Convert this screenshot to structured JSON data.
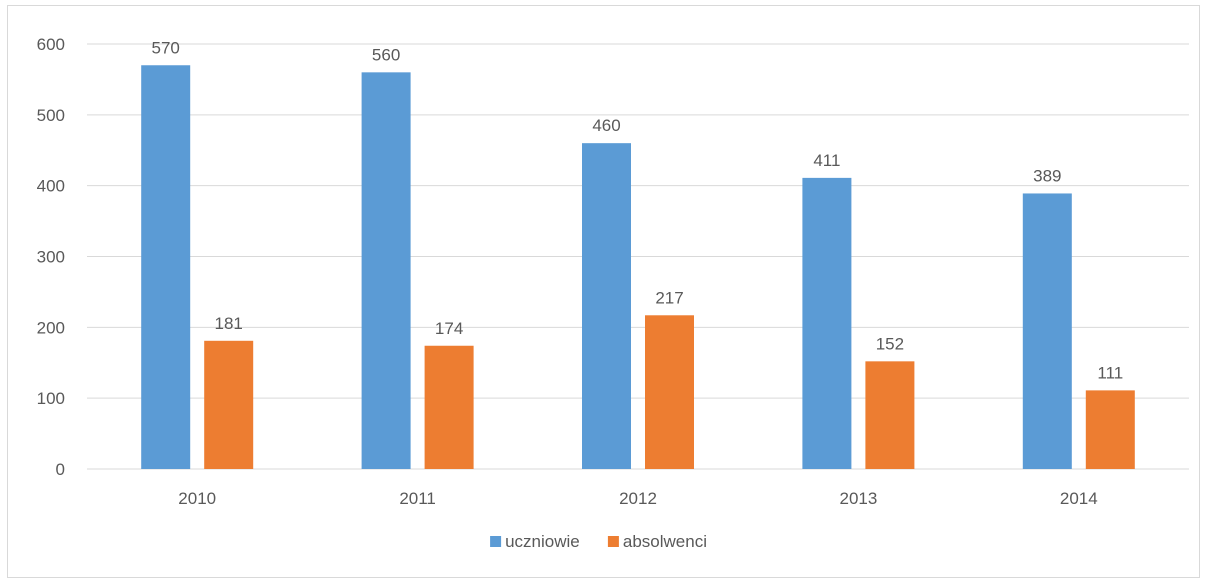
{
  "chart_data": {
    "type": "bar",
    "title": "",
    "xlabel": "",
    "ylabel": "",
    "categories": [
      "2010",
      "2011",
      "2012",
      "2013",
      "2014"
    ],
    "series": [
      {
        "name": "uczniowie",
        "color": "#5b9bd5",
        "values": [
          570,
          560,
          460,
          411,
          389
        ]
      },
      {
        "name": "absolwenci",
        "color": "#ed7d31",
        "values": [
          181,
          174,
          217,
          152,
          111
        ]
      }
    ],
    "ylim": [
      0,
      600
    ],
    "yticks": [
      0,
      100,
      200,
      300,
      400,
      500,
      600
    ],
    "grid": true,
    "legend_position": "bottom"
  }
}
